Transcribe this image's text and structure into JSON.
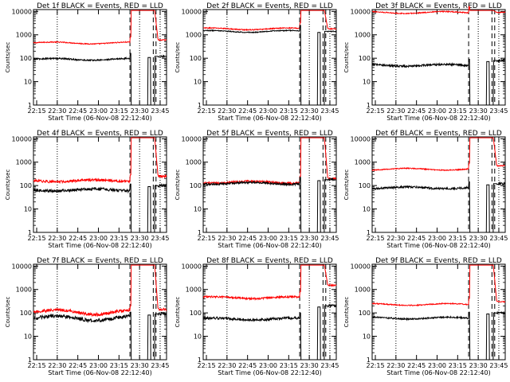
{
  "colors": {
    "events": "#000000",
    "lld": "#ff0000",
    "background": "#ffffff",
    "axes": "#000000"
  },
  "chart_data": [
    {
      "type": "line",
      "title": "Det 1f BLACK = Events, RED = LLD",
      "xlabel": "Start Time (06-Nov-08 22:12:40)",
      "ylabel": "Counts/sec",
      "yscale": "log",
      "ylim": [
        1,
        12000
      ],
      "xlim_minutes_since_start": [
        0,
        97
      ],
      "x_tick_labels": [
        "22:15",
        "22:30",
        "22:45",
        "23:00",
        "23:15",
        "23:30",
        "23:45"
      ],
      "y_tick_labels": [
        "1",
        "10",
        "100",
        "1000",
        "10000"
      ],
      "dotted_vlines": [
        "22:30",
        "23:30",
        "23:45"
      ],
      "dashed_vlines": [
        "23:23",
        "23:40",
        "23:42"
      ],
      "series": [
        {
          "color": "red",
          "level": 450,
          "after_saa": 600,
          "noise": 0.02
        },
        {
          "color": "black",
          "level": 90,
          "after_saa": 120,
          "noise": 0.03
        }
      ]
    },
    {
      "type": "line",
      "title": "Det 2f BLACK = Events, RED = LLD",
      "xlabel": "Start Time (06-Nov-08 22:12:40)",
      "ylabel": "Counts/sec",
      "yscale": "log",
      "ylim": [
        1,
        12000
      ],
      "xlim_minutes_since_start": [
        0,
        97
      ],
      "x_tick_labels": [
        "22:15",
        "22:30",
        "22:45",
        "23:00",
        "23:15",
        "23:30",
        "23:45"
      ],
      "y_tick_labels": [
        "1",
        "10",
        "100",
        "1000",
        "10000"
      ],
      "dotted_vlines": [
        "22:30",
        "23:30",
        "23:45"
      ],
      "dashed_vlines": [
        "23:23",
        "23:40",
        "23:42"
      ],
      "series": [
        {
          "color": "red",
          "level": 1800,
          "after_saa": 1800,
          "noise": 0.02
        },
        {
          "color": "black",
          "level": 1400,
          "after_saa": 1400,
          "noise": 0.02
        }
      ]
    },
    {
      "type": "line",
      "title": "Det 3f BLACK = Events, RED = LLD",
      "xlabel": "Start Time (06-Nov-08 22:12:40)",
      "ylabel": "Counts/sec",
      "yscale": "log",
      "ylim": [
        1,
        12000
      ],
      "xlim_minutes_since_start": [
        0,
        97
      ],
      "x_tick_labels": [
        "22:15",
        "22:30",
        "22:45",
        "23:00",
        "23:15",
        "23:30",
        "23:45"
      ],
      "y_tick_labels": [
        "1",
        "10",
        "100",
        "1000",
        "10000"
      ],
      "dotted_vlines": [
        "22:30",
        "23:30",
        "23:45"
      ],
      "dashed_vlines": [
        "23:23",
        "23:40",
        "23:42"
      ],
      "series": [
        {
          "color": "red",
          "level": 9000,
          "after_saa": 9000,
          "noise": 0.02
        },
        {
          "color": "black",
          "level": 50,
          "after_saa": 80,
          "noise": 0.04
        }
      ]
    },
    {
      "type": "line",
      "title": "Det 4f BLACK = Events, RED = LLD",
      "xlabel": "Start Time (06-Nov-08 22:12:40)",
      "ylabel": "Counts/sec",
      "yscale": "log",
      "ylim": [
        1,
        12000
      ],
      "xlim_minutes_since_start": [
        0,
        97
      ],
      "x_tick_labels": [
        "22:15",
        "22:30",
        "22:45",
        "23:00",
        "23:15",
        "23:30",
        "23:45"
      ],
      "y_tick_labels": [
        "1",
        "10",
        "100",
        "1000",
        "10000"
      ],
      "dotted_vlines": [
        "22:30",
        "23:30",
        "23:45"
      ],
      "dashed_vlines": [
        "23:23",
        "23:40",
        "23:42"
      ],
      "series": [
        {
          "color": "red",
          "level": 160,
          "after_saa": 250,
          "noise": 0.05
        },
        {
          "color": "black",
          "level": 65,
          "after_saa": 100,
          "noise": 0.06
        }
      ]
    },
    {
      "type": "line",
      "title": "Det 5f BLACK = Events, RED = LLD",
      "xlabel": "Start Time (06-Nov-08 22:12:40)",
      "ylabel": "Counts/sec",
      "yscale": "log",
      "ylim": [
        1,
        12000
      ],
      "xlim_minutes_since_start": [
        0,
        97
      ],
      "x_tick_labels": [
        "22:15",
        "22:30",
        "22:45",
        "23:00",
        "23:15",
        "23:30",
        "23:45"
      ],
      "y_tick_labels": [
        "1",
        "10",
        "100",
        "1000",
        "10000"
      ],
      "dotted_vlines": [
        "22:30",
        "23:30",
        "23:45"
      ],
      "dashed_vlines": [
        "23:23",
        "23:40",
        "23:42"
      ],
      "series": [
        {
          "color": "red",
          "level": 140,
          "after_saa": 200,
          "noise": 0.04
        },
        {
          "color": "black",
          "level": 125,
          "after_saa": 180,
          "noise": 0.04
        }
      ]
    },
    {
      "type": "line",
      "title": "Det 6f BLACK = Events, RED = LLD",
      "xlabel": "Start Time (06-Nov-08 22:12:40)",
      "ylabel": "Counts/sec",
      "yscale": "log",
      "ylim": [
        1,
        12000
      ],
      "xlim_minutes_since_start": [
        0,
        97
      ],
      "x_tick_labels": [
        "22:15",
        "22:30",
        "22:45",
        "23:00",
        "23:15",
        "23:30",
        "23:45"
      ],
      "y_tick_labels": [
        "1",
        "10",
        "100",
        "1000",
        "10000"
      ],
      "dotted_vlines": [
        "22:30",
        "23:30",
        "23:45"
      ],
      "dashed_vlines": [
        "23:23",
        "23:40",
        "23:42"
      ],
      "series": [
        {
          "color": "red",
          "level": 500,
          "after_saa": 700,
          "noise": 0.02
        },
        {
          "color": "black",
          "level": 80,
          "after_saa": 120,
          "noise": 0.04
        }
      ]
    },
    {
      "type": "line",
      "title": "Det 7f BLACK = Events, RED = LLD",
      "xlabel": "Start Time (06-Nov-08 22:12:40)",
      "ylabel": "Counts/sec",
      "yscale": "log",
      "ylim": [
        1,
        12000
      ],
      "xlim_minutes_since_start": [
        0,
        97
      ],
      "x_tick_labels": [
        "22:15",
        "22:30",
        "22:45",
        "23:00",
        "23:15",
        "23:30",
        "23:45"
      ],
      "y_tick_labels": [
        "1",
        "10",
        "100",
        "1000",
        "10000"
      ],
      "dotted_vlines": [
        "22:30",
        "23:30",
        "23:45"
      ],
      "dashed_vlines": [
        "23:23",
        "23:40",
        "23:42"
      ],
      "series": [
        {
          "color": "red",
          "level": 110,
          "after_saa": 140,
          "noise": 0.06
        },
        {
          "color": "black",
          "level": 60,
          "after_saa": 90,
          "noise": 0.07
        }
      ]
    },
    {
      "type": "line",
      "title": "Det 8f BLACK = Events, RED = LLD",
      "xlabel": "Start Time (06-Nov-08 22:12:40)",
      "ylabel": "Counts/sec",
      "yscale": "log",
      "ylim": [
        1,
        12000
      ],
      "xlim_minutes_since_start": [
        0,
        97
      ],
      "x_tick_labels": [
        "22:15",
        "22:30",
        "22:45",
        "23:00",
        "23:15",
        "23:30",
        "23:45"
      ],
      "y_tick_labels": [
        "1",
        "10",
        "100",
        "1000",
        "10000"
      ],
      "dotted_vlines": [
        "22:30",
        "23:30",
        "23:45"
      ],
      "dashed_vlines": [
        "23:23",
        "23:40",
        "23:42"
      ],
      "series": [
        {
          "color": "red",
          "level": 450,
          "after_saa": 1500,
          "noise": 0.04
        },
        {
          "color": "black",
          "level": 55,
          "after_saa": 200,
          "noise": 0.05
        }
      ]
    },
    {
      "type": "line",
      "title": "Det 9f BLACK = Events, RED = LLD",
      "xlabel": "Start Time (06-Nov-08 22:12:40)",
      "ylabel": "Counts/sec",
      "yscale": "log",
      "ylim": [
        1,
        12000
      ],
      "xlim_minutes_since_start": [
        0,
        97
      ],
      "x_tick_labels": [
        "22:15",
        "22:30",
        "22:45",
        "23:00",
        "23:15",
        "23:30",
        "23:45"
      ],
      "y_tick_labels": [
        "1",
        "10",
        "100",
        "1000",
        "10000"
      ],
      "dotted_vlines": [
        "22:30",
        "23:30",
        "23:45"
      ],
      "dashed_vlines": [
        "23:23",
        "23:40",
        "23:42"
      ],
      "series": [
        {
          "color": "red",
          "level": 230,
          "after_saa": 300,
          "noise": 0.02
        },
        {
          "color": "black",
          "level": 60,
          "after_saa": 100,
          "noise": 0.03
        }
      ]
    }
  ]
}
